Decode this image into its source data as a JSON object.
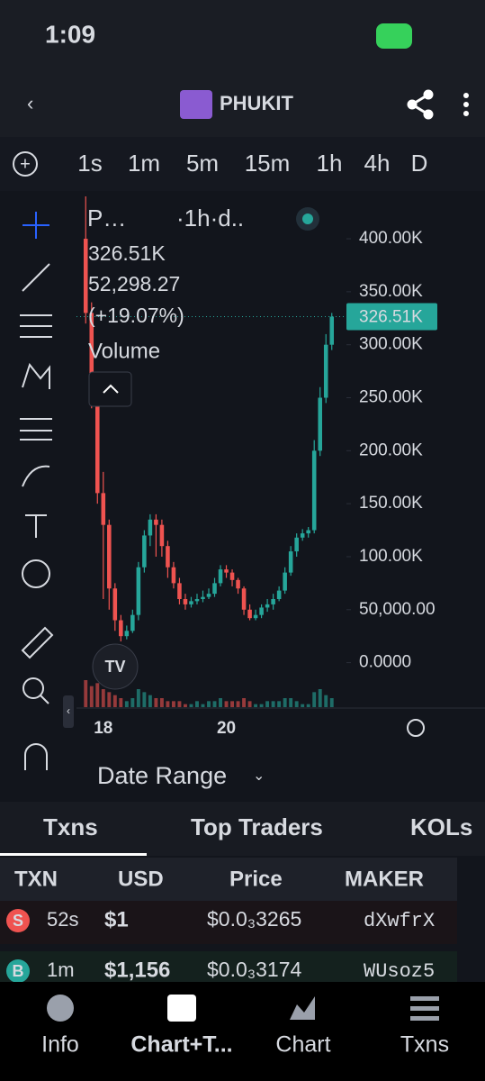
{
  "status": {
    "time": "1:09"
  },
  "header": {
    "title": "PHUKIT"
  },
  "timeframes": {
    "items": [
      "1s",
      "1m",
      "5m",
      "15m",
      "1h",
      "4h",
      "D"
    ],
    "active": 4
  },
  "legend": {
    "symbol": "P…",
    "interval": "·1h·d..",
    "price": "326.51K",
    "change": "52,298.27",
    "change_pct": "(+19.07%)",
    "study": "Volume"
  },
  "chart": {
    "type": "candlestick",
    "ylim": [
      -42000,
      440000
    ],
    "yticks": [
      {
        "value": 0,
        "label": "0.0000"
      },
      {
        "value": 50000,
        "label": "50,000.00"
      },
      {
        "value": 100000,
        "label": "100.00K"
      },
      {
        "value": 150000,
        "label": "150.00K"
      },
      {
        "value": 200000,
        "label": "200.00K"
      },
      {
        "value": 250000,
        "label": "250.00K"
      },
      {
        "value": 300000,
        "label": "300.00K"
      },
      {
        "value": 350000,
        "label": "350.00K"
      },
      {
        "value": 400000,
        "label": "400.00K"
      }
    ],
    "last_price": {
      "value": 326510,
      "label": "326.51K"
    },
    "up_color": "#26a69a",
    "down_color": "#ef5350",
    "open": [
      400000,
      330000,
      250000,
      160000,
      130000,
      70000,
      40000,
      25000,
      30000,
      45000,
      90000,
      120000,
      135000,
      130000,
      110000,
      90000,
      75000,
      60000,
      55000,
      58000,
      60000,
      62000,
      65000,
      75000,
      88000,
      85000,
      78000,
      70000,
      50000,
      42000,
      45000,
      52000,
      55000,
      60000,
      68000,
      85000,
      105000,
      118000,
      122000,
      125000,
      200000,
      250000,
      300000
    ],
    "high": [
      440000,
      340000,
      270000,
      180000,
      135000,
      75000,
      45000,
      35000,
      50000,
      95000,
      125000,
      140000,
      140000,
      135000,
      115000,
      95000,
      80000,
      65000,
      62000,
      65000,
      68000,
      70000,
      80000,
      92000,
      92000,
      88000,
      80000,
      72000,
      55000,
      50000,
      55000,
      60000,
      65000,
      72000,
      90000,
      110000,
      122000,
      126000,
      128000,
      210000,
      260000,
      310000,
      330000
    ],
    "low": [
      320000,
      240000,
      150000,
      60000,
      50000,
      30000,
      20000,
      22000,
      28000,
      40000,
      85000,
      110000,
      100000,
      100000,
      80000,
      70000,
      55000,
      50000,
      52000,
      55000,
      57000,
      60000,
      62000,
      72000,
      80000,
      72000,
      65000,
      45000,
      40000,
      40000,
      42000,
      48000,
      50000,
      58000,
      65000,
      82000,
      100000,
      115000,
      118000,
      122000,
      195000,
      245000,
      295000
    ],
    "close": [
      330000,
      250000,
      160000,
      130000,
      70000,
      40000,
      25000,
      30000,
      45000,
      90000,
      120000,
      135000,
      130000,
      110000,
      90000,
      75000,
      60000,
      55000,
      58000,
      60000,
      62000,
      65000,
      75000,
      88000,
      85000,
      78000,
      70000,
      50000,
      42000,
      45000,
      52000,
      55000,
      60000,
      68000,
      85000,
      105000,
      118000,
      122000,
      125000,
      200000,
      250000,
      300000,
      326510
    ],
    "volume": [
      9,
      7,
      8,
      6,
      5,
      4,
      3,
      2,
      3,
      6,
      5,
      4,
      3,
      3,
      2,
      2,
      2,
      1,
      1,
      2,
      1,
      2,
      2,
      3,
      2,
      2,
      2,
      3,
      2,
      1,
      1,
      2,
      2,
      2,
      3,
      3,
      2,
      1,
      1,
      5,
      6,
      4,
      3
    ],
    "dates": [
      {
        "index": 3,
        "label": "18"
      },
      {
        "index": 24,
        "label": "20"
      }
    ]
  },
  "date_range": "Date Range",
  "tabs": [
    "Txns",
    "Top Traders",
    "KOLs"
  ],
  "table": {
    "columns": [
      "TXN",
      "USD",
      "Price",
      "MAKER"
    ],
    "rows": [
      [
        "S",
        "52s",
        "$1",
        "$0.0₃3265",
        "dXwfrX"
      ],
      [
        "B",
        "1m",
        "$1,156",
        "$0.0₃3174",
        "WUsoz5"
      ]
    ]
  },
  "nav": [
    "Info",
    "Chart+T...",
    "Chart",
    "Txns"
  ]
}
